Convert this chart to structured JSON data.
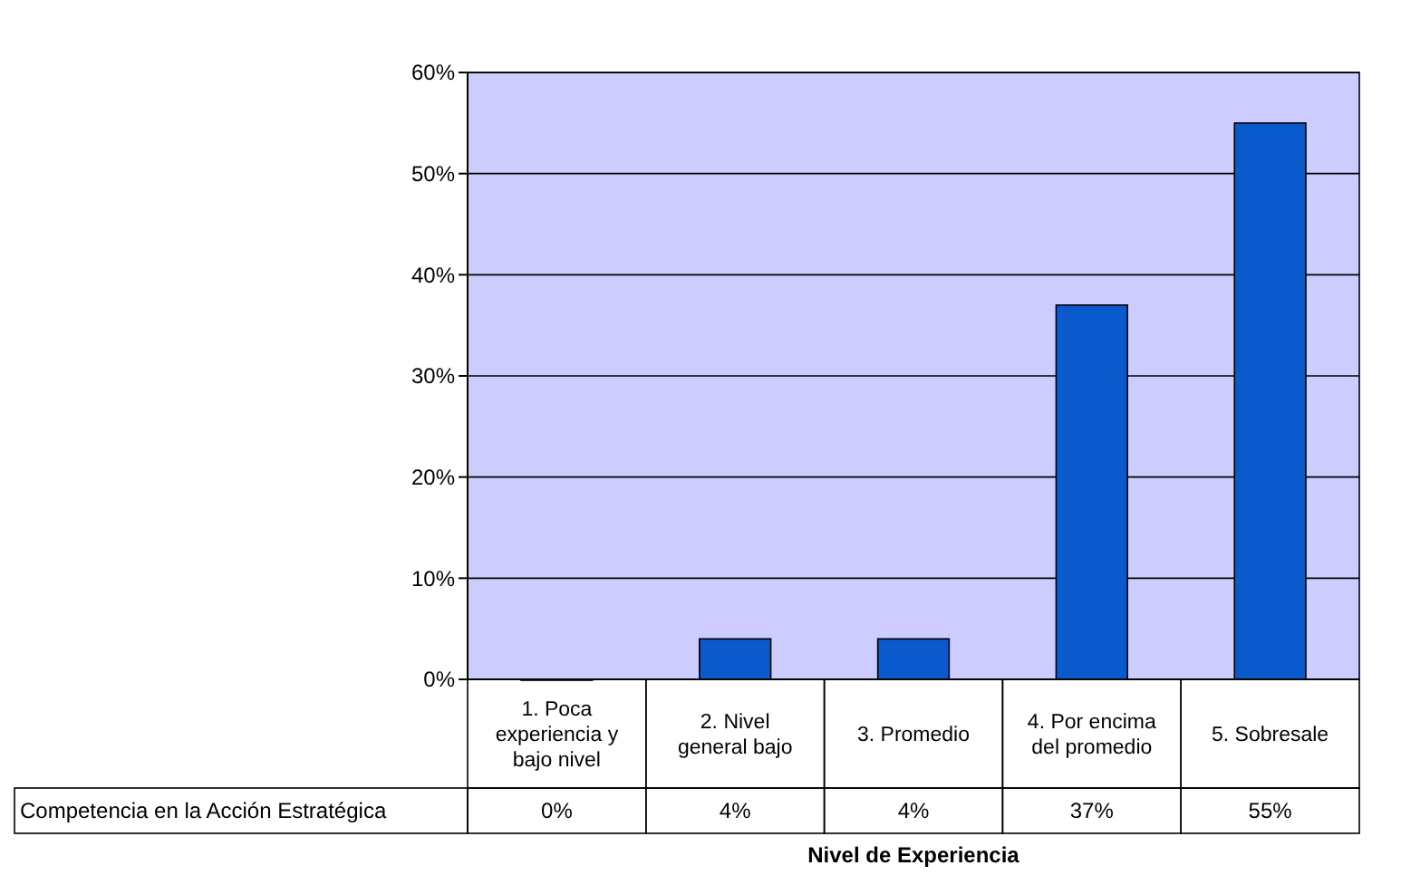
{
  "chart_data": {
    "type": "bar",
    "xlabel": "Nivel de Experiencia",
    "categories": [
      "1. Poca experiencia y bajo nivel",
      "2. Nivel general bajo",
      "3. Promedio",
      "4. Por encima del promedio",
      "5. Sobresale"
    ],
    "series": [
      {
        "name": "Competencia en la Acción Estratégica",
        "color": "#0a5acd",
        "values": [
          0,
          4,
          4,
          37,
          55
        ],
        "value_labels": [
          "0%",
          "4%",
          "4%",
          "37%",
          "55%"
        ]
      }
    ],
    "ylim": [
      0,
      60
    ],
    "yticks": [
      {
        "value": 0,
        "label": "0%"
      },
      {
        "value": 10,
        "label": "10%"
      },
      {
        "value": 20,
        "label": "20%"
      },
      {
        "value": 30,
        "label": "30%"
      },
      {
        "value": 40,
        "label": "40%"
      },
      {
        "value": 50,
        "label": "50%"
      },
      {
        "value": 60,
        "label": "60%"
      }
    ],
    "grid": "y"
  }
}
